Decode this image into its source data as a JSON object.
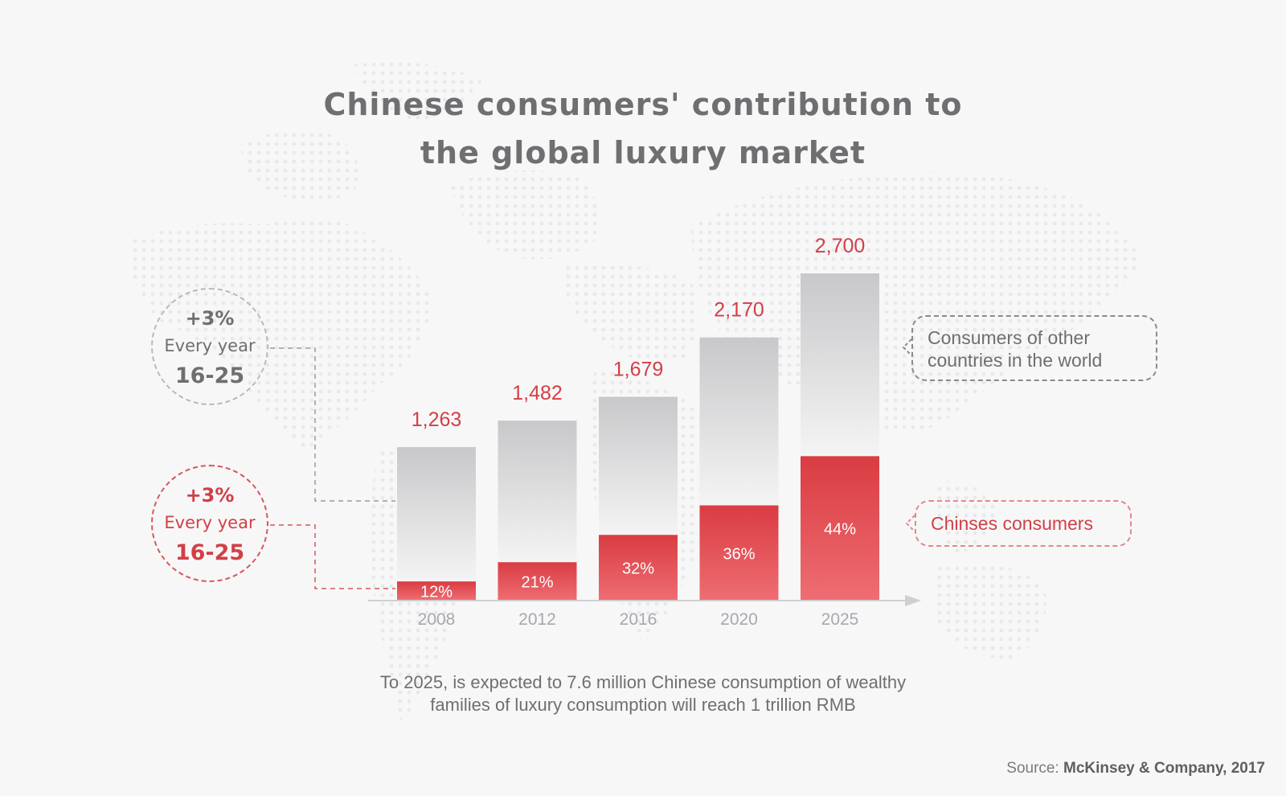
{
  "title_line1": "Chinese consumers' contribution to",
  "title_line2": "the global luxury market",
  "growth_total": {
    "pct": "+3%",
    "every": "Every year",
    "range": "16-25"
  },
  "growth_china": {
    "pct": "+3%",
    "every": "Every year",
    "range": "16-25"
  },
  "callout_other": {
    "line1": "Consumers of other",
    "line2": "countries in the world"
  },
  "callout_china": "Chinses consumers",
  "caption_line1": "To 2025, is expected to 7.6 million Chinese consumption of wealthy",
  "caption_line2": "families of luxury consumption will reach 1 trillion RMB",
  "source_label": "Source:",
  "source_name": "McKinsey & Company, 2017",
  "colors": {
    "accent_red": "#d23f46",
    "grey_text": "#6f6f72",
    "bar_grey_top": "#c9c9cb",
    "bar_grey_bottom": "#f3f3f4",
    "bar_red_top": "#d93c42",
    "bar_red_bottom": "#ef7075"
  },
  "chart_data": {
    "type": "bar",
    "stacked": true,
    "categories": [
      "2008",
      "2012",
      "2016",
      "2020",
      "2025"
    ],
    "totals": [
      1263,
      1482,
      1679,
      2170,
      2700
    ],
    "total_labels": [
      "1,263",
      "1,482",
      "1,679",
      "2,170",
      "2,700"
    ],
    "china_share_percent": [
      12,
      21,
      32,
      36,
      44
    ],
    "china_share_labels": [
      "12%",
      "21%",
      "32%",
      "36%",
      "44%"
    ],
    "series": [
      {
        "name": "Consumers of other countries in the world",
        "values": [
          1111,
          1171,
          1142,
          1389,
          1512
        ]
      },
      {
        "name": "Chinses consumers",
        "values": [
          152,
          311,
          537,
          781,
          1188
        ]
      }
    ]
  }
}
